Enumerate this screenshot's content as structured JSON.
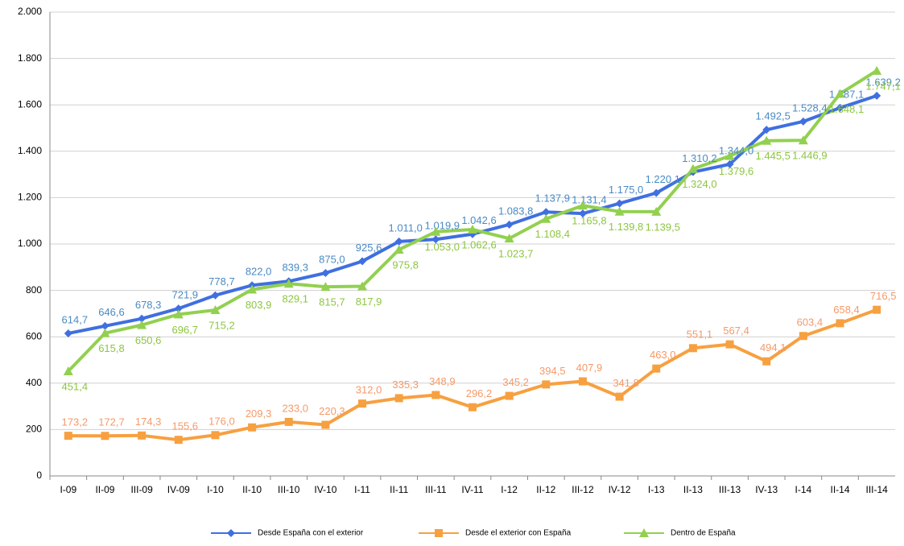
{
  "chart_data": {
    "type": "line",
    "categories": [
      "I-09",
      "II-09",
      "III-09",
      "IV-09",
      "I-10",
      "II-10",
      "III-10",
      "IV-10",
      "I-11",
      "II-11",
      "III-11",
      "IV-11",
      "I-12",
      "II-12",
      "III-12",
      "IV-12",
      "I-13",
      "II-13",
      "III-13",
      "IV-13",
      "I-14",
      "II-14",
      "III-14"
    ],
    "ylim": [
      0,
      2000
    ],
    "yticks": [
      0,
      200,
      400,
      600,
      800,
      {
        "value": 1000,
        "label": "1.000"
      },
      {
        "value": 1200,
        "label": "1.200"
      },
      {
        "value": 1400,
        "label": "1.400"
      },
      {
        "value": 1600,
        "label": "1.600"
      },
      {
        "value": 1800,
        "label": "1.800"
      },
      {
        "value": 2000,
        "label": "2.000"
      }
    ],
    "grid": true,
    "legend": "bottom",
    "series": [
      {
        "name": "Desde España con el exterior",
        "color": "#3f6fe0",
        "marker": "diamond",
        "label_color": "#4a8ac4",
        "values": [
          614.7,
          646.6,
          678.3,
          721.9,
          778.7,
          822.0,
          839.3,
          875.0,
          925.6,
          1011.0,
          1019.9,
          1042.6,
          1083.8,
          1137.9,
          1131.4,
          1175.0,
          1220.1,
          1310.2,
          1344.0,
          1492.5,
          1528.4,
          1587.1,
          1639.2
        ],
        "value_labels": [
          "614,7",
          "646,6",
          "678,3",
          "721,9",
          "778,7",
          "822,0",
          "839,3",
          "875,0",
          "925,6",
          "1.011,0",
          "1.019,9",
          "1.042,6",
          "1.083,8",
          "1.137,9",
          "1.131,4",
          "1.175,0",
          "1.220,1",
          "1.310,2",
          "1.344,0",
          "1.492,5",
          "1.528,4",
          "1.587,1",
          "1.639,2"
        ]
      },
      {
        "name": "Desde el exterior con España",
        "color": "#f7a040",
        "marker": "square",
        "label_color": "#f59a6a",
        "values": [
          173.2,
          172.7,
          174.3,
          155.6,
          176.0,
          209.3,
          233.0,
          220.3,
          312.0,
          335.3,
          348.9,
          296.2,
          345.2,
          394.5,
          407.9,
          341.8,
          463.0,
          551.1,
          567.4,
          494.1,
          603.4,
          658.4,
          716.5
        ],
        "value_labels": [
          "173,2",
          "172,7",
          "174,3",
          "155,6",
          "176,0",
          "209,3",
          "233,0",
          "220,3",
          "312,0",
          "335,3",
          "348,9",
          "296,2",
          "345,2",
          "394,5",
          "407,9",
          "341,8",
          "463,0",
          "551,1",
          "567,4",
          "494,1",
          "603,4",
          "658,4",
          "716,5"
        ]
      },
      {
        "name": "Dentro de España",
        "color": "#92d050",
        "marker": "triangle",
        "label_color": "#8cc63f",
        "values": [
          451.4,
          615.8,
          650.6,
          696.7,
          715.2,
          803.9,
          829.1,
          815.7,
          817.9,
          975.8,
          1053.0,
          1062.6,
          1023.7,
          1108.4,
          1165.8,
          1139.8,
          1139.5,
          1324.0,
          1379.6,
          1445.5,
          1446.9,
          1648.1,
          1747.1
        ],
        "value_labels": [
          "451,4",
          "615,8",
          "650,6",
          "696,7",
          "715,2",
          "803,9",
          "829,1",
          "815,7",
          "817,9",
          "975,8",
          "1.053,0",
          "1.062,6",
          "1.023,7",
          "1.108,4",
          "1.165,8",
          "1.139,8",
          "1.139,5",
          "1.324,0",
          "1.379,6",
          "1.445,5",
          "1.446,9",
          "1.648,1",
          "1.747,1"
        ]
      }
    ]
  }
}
